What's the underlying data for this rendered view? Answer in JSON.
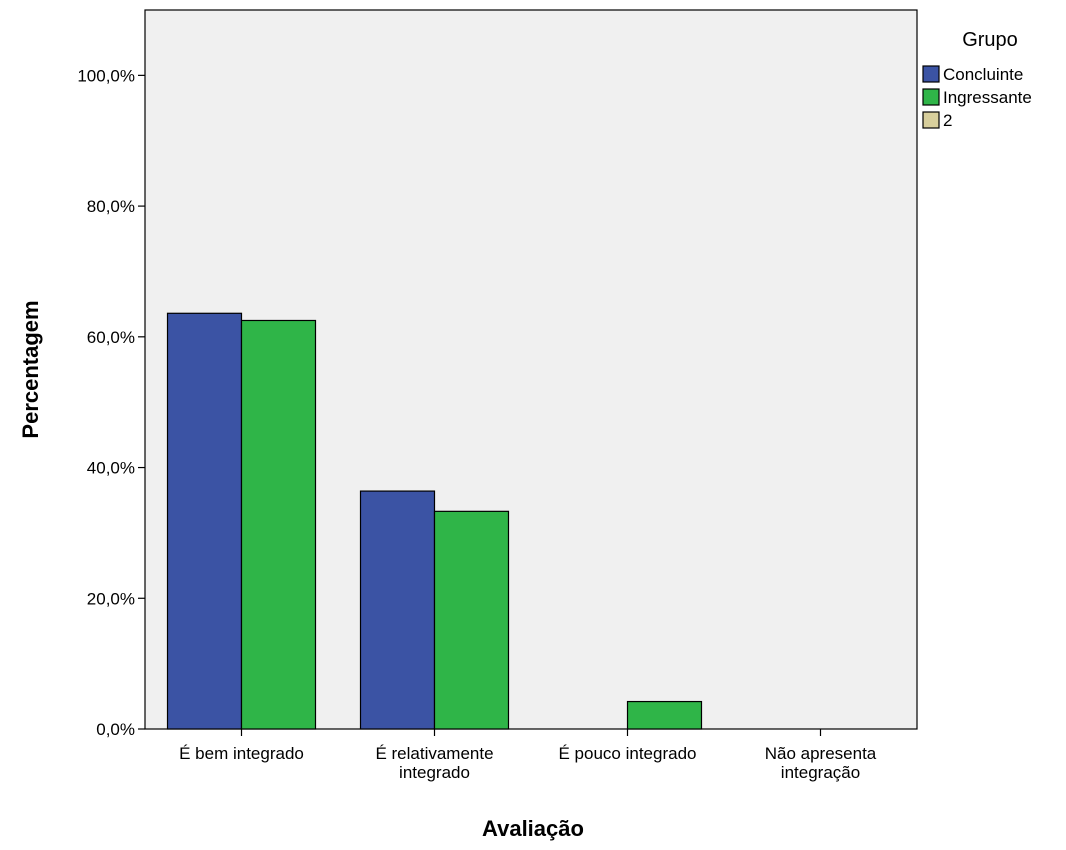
{
  "chart_data": {
    "type": "bar",
    "title": "",
    "xlabel": "Avaliação",
    "ylabel": "Percentagem",
    "ylim": [
      0,
      110
    ],
    "yticks": [
      0,
      20,
      40,
      60,
      80,
      100
    ],
    "ytick_labels": [
      "0,0%",
      "20,0%",
      "40,0%",
      "60,0%",
      "80,0%",
      "100,0%"
    ],
    "categories": [
      [
        "É bem integrado"
      ],
      [
        "É relativamente",
        "integrado"
      ],
      [
        "É pouco integrado"
      ],
      [
        "Não apresenta",
        "integração"
      ]
    ],
    "series": [
      {
        "name": "Concluinte",
        "color": "#3b53a4",
        "values": [
          63.6,
          36.4,
          0,
          0
        ]
      },
      {
        "name": "Ingressante",
        "color": "#2fb548",
        "values": [
          62.5,
          33.3,
          4.2,
          0
        ]
      },
      {
        "name": "2",
        "color": "#d8cf9c",
        "values": [
          0,
          0,
          0,
          0
        ]
      }
    ],
    "legend": {
      "title": "Grupo",
      "position": "top-right"
    },
    "plot_background": "#f0f0f0",
    "grid": false
  }
}
